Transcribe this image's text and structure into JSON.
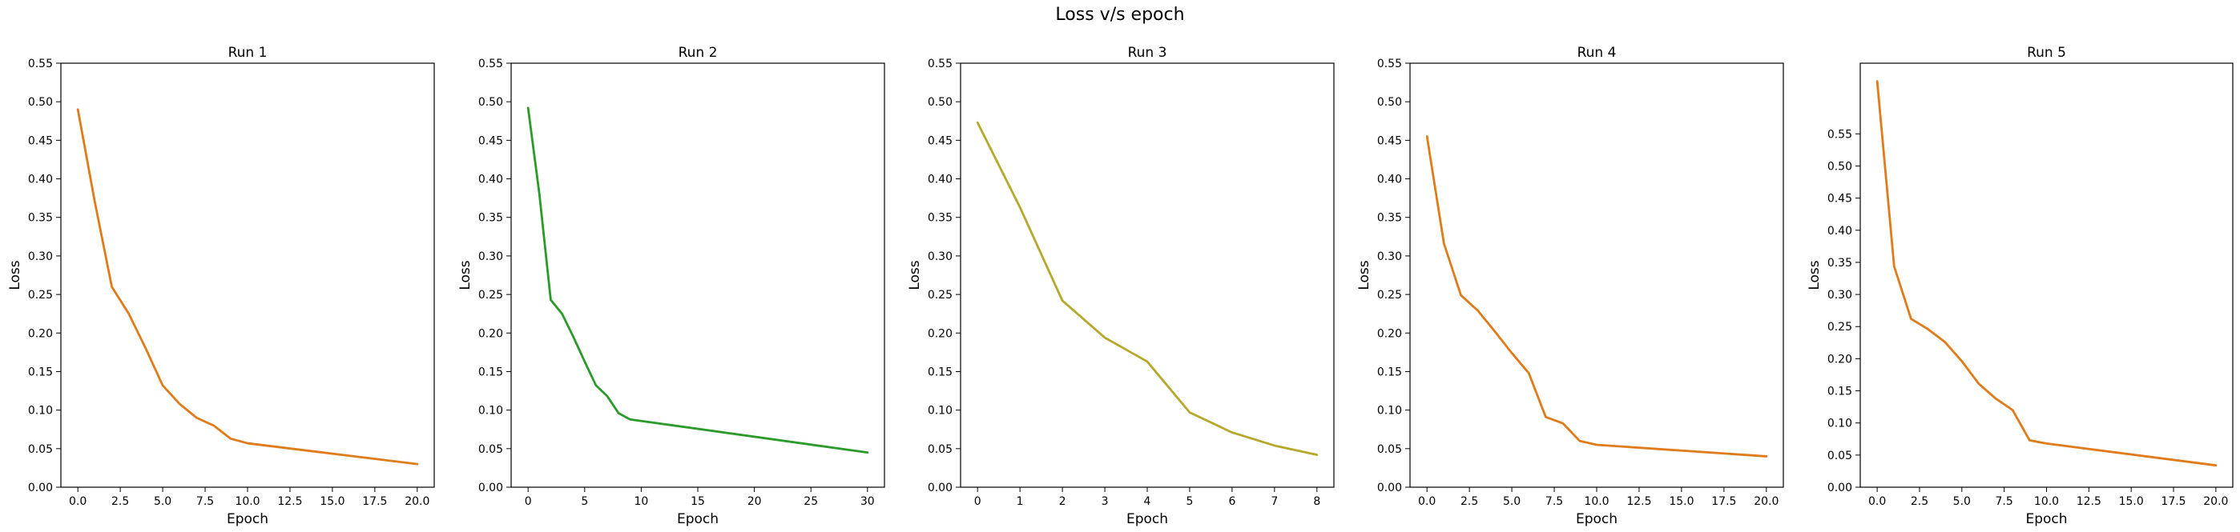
{
  "figure": {
    "title": "Loss v/s epoch"
  },
  "chart_data": [
    {
      "type": "line",
      "title": "Run 1",
      "xlabel": "Epoch",
      "ylabel": "Loss",
      "color": "#e07b1a",
      "xlim": [
        -1,
        21
      ],
      "ylim": [
        0,
        0.55
      ],
      "xticks": [
        0,
        2.5,
        5,
        7.5,
        10,
        12.5,
        15,
        17.5,
        20
      ],
      "xtick_labels": [
        "0.0",
        "2.5",
        "5.0",
        "7.5",
        "10.0",
        "12.5",
        "15.0",
        "17.5",
        "20.0"
      ],
      "yticks": [
        0,
        0.05,
        0.1,
        0.15,
        0.2,
        0.25,
        0.3,
        0.35,
        0.4,
        0.45,
        0.5,
        0.55
      ],
      "ytick_labels": [
        "0.00",
        "0.05",
        "0.10",
        "0.15",
        "0.20",
        "0.25",
        "0.30",
        "0.35",
        "0.40",
        "0.45",
        "0.50",
        "0.55"
      ],
      "series": [
        {
          "x": [
            0,
            1,
            2,
            3,
            4,
            5,
            6,
            7,
            8,
            9,
            10,
            20
          ],
          "values": [
            0.49,
            0.37,
            0.26,
            0.225,
            0.18,
            0.132,
            0.108,
            0.09,
            0.08,
            0.063,
            0.057,
            0.03
          ]
        }
      ]
    },
    {
      "type": "line",
      "title": "Run 2",
      "xlabel": "Epoch",
      "ylabel": "Loss",
      "color": "#2a9a2a",
      "xlim": [
        -1.5,
        31.5
      ],
      "ylim": [
        0,
        0.55
      ],
      "xticks": [
        0,
        5,
        10,
        15,
        20,
        25,
        30
      ],
      "xtick_labels": [
        "0",
        "5",
        "10",
        "15",
        "20",
        "25",
        "30"
      ],
      "yticks": [
        0,
        0.05,
        0.1,
        0.15,
        0.2,
        0.25,
        0.3,
        0.35,
        0.4,
        0.45,
        0.5,
        0.55
      ],
      "ytick_labels": [
        "0.00",
        "0.05",
        "0.10",
        "0.15",
        "0.20",
        "0.25",
        "0.30",
        "0.35",
        "0.40",
        "0.45",
        "0.50",
        "0.55"
      ],
      "series": [
        {
          "x": [
            0,
            1,
            2,
            3,
            4,
            5,
            6,
            7,
            8,
            9,
            30
          ],
          "values": [
            0.492,
            0.38,
            0.243,
            0.225,
            0.195,
            0.163,
            0.132,
            0.118,
            0.096,
            0.088,
            0.045
          ]
        }
      ]
    },
    {
      "type": "line",
      "title": "Run 3",
      "xlabel": "Epoch",
      "ylabel": "Loss",
      "color": "#b5a82a",
      "xlim": [
        -0.4,
        8.4
      ],
      "ylim": [
        0,
        0.55
      ],
      "xticks": [
        0,
        1,
        2,
        3,
        4,
        5,
        6,
        7,
        8
      ],
      "xtick_labels": [
        "0",
        "1",
        "2",
        "3",
        "4",
        "5",
        "6",
        "7",
        "8"
      ],
      "yticks": [
        0,
        0.05,
        0.1,
        0.15,
        0.2,
        0.25,
        0.3,
        0.35,
        0.4,
        0.45,
        0.5,
        0.55
      ],
      "ytick_labels": [
        "0.00",
        "0.05",
        "0.10",
        "0.15",
        "0.20",
        "0.25",
        "0.30",
        "0.35",
        "0.40",
        "0.45",
        "0.50",
        "0.55"
      ],
      "series": [
        {
          "x": [
            0,
            1,
            2,
            3,
            4,
            5,
            6,
            7,
            8
          ],
          "values": [
            0.473,
            0.363,
            0.242,
            0.194,
            0.163,
            0.097,
            0.071,
            0.054,
            0.042
          ]
        }
      ]
    },
    {
      "type": "line",
      "title": "Run 4",
      "xlabel": "Epoch",
      "ylabel": "Loss",
      "color": "#e07b1a",
      "xlim": [
        -1,
        21
      ],
      "ylim": [
        0,
        0.55
      ],
      "xticks": [
        0,
        2.5,
        5,
        7.5,
        10,
        12.5,
        15,
        17.5,
        20
      ],
      "xtick_labels": [
        "0.0",
        "2.5",
        "5.0",
        "7.5",
        "10.0",
        "12.5",
        "15.0",
        "17.5",
        "20.0"
      ],
      "yticks": [
        0,
        0.05,
        0.1,
        0.15,
        0.2,
        0.25,
        0.3,
        0.35,
        0.4,
        0.45,
        0.5,
        0.55
      ],
      "ytick_labels": [
        "0.00",
        "0.05",
        "0.10",
        "0.15",
        "0.20",
        "0.25",
        "0.30",
        "0.35",
        "0.40",
        "0.45",
        "0.50",
        "0.55"
      ],
      "series": [
        {
          "x": [
            0,
            1,
            2,
            3,
            4,
            5,
            6,
            7,
            8,
            9,
            10,
            20
          ],
          "values": [
            0.455,
            0.316,
            0.249,
            0.229,
            0.202,
            0.174,
            0.148,
            0.091,
            0.083,
            0.06,
            0.055,
            0.04
          ]
        }
      ]
    },
    {
      "type": "line",
      "title": "Run 5",
      "xlabel": "Epoch",
      "ylabel": "Loss",
      "color": "#e07b1a",
      "xlim": [
        -1,
        21
      ],
      "ylim": [
        0,
        0.66
      ],
      "xticks": [
        0,
        2.5,
        5,
        7.5,
        10,
        12.5,
        15,
        17.5,
        20
      ],
      "xtick_labels": [
        "0.0",
        "2.5",
        "5.0",
        "7.5",
        "10.0",
        "12.5",
        "15.0",
        "17.5",
        "20.0"
      ],
      "yticks": [
        0,
        0.05,
        0.1,
        0.15,
        0.2,
        0.25,
        0.3,
        0.35,
        0.4,
        0.45,
        0.5,
        0.55
      ],
      "ytick_labels": [
        "0.00",
        "0.05",
        "0.10",
        "0.15",
        "0.20",
        "0.25",
        "0.30",
        "0.35",
        "0.40",
        "0.45",
        "0.50",
        "0.55"
      ],
      "series": [
        {
          "x": [
            0,
            1,
            2,
            3,
            4,
            5,
            6,
            7,
            8,
            9,
            10,
            20
          ],
          "values": [
            0.632,
            0.344,
            0.262,
            0.246,
            0.226,
            0.196,
            0.161,
            0.138,
            0.12,
            0.073,
            0.068,
            0.034
          ]
        }
      ]
    }
  ]
}
